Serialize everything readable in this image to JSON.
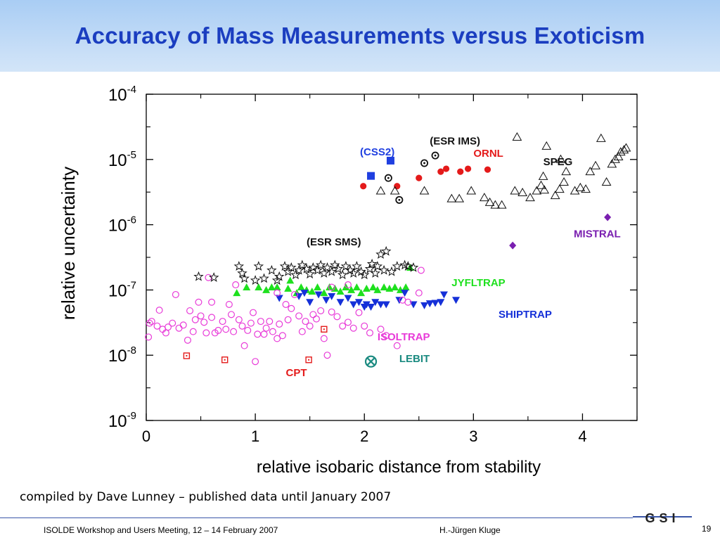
{
  "slide": {
    "title": "Accuracy of Mass Measurements versus Exoticism",
    "credit": "compiled by Dave Lunney – published data until January 2007",
    "footer_left": "ISOLDE Workshop and Users Meeting, 12 – 14  February 2007",
    "footer_mid": "H.-Jürgen Kluge",
    "page_number": "19",
    "logo_text": "GSI"
  },
  "chart_data": {
    "type": "scatter",
    "xlabel": "relative isobaric distance from stability",
    "ylabel": "relative uncertainty",
    "xlim": [
      0,
      4.5
    ],
    "ylim": [
      1e-09,
      0.0001
    ],
    "y_scale": "log",
    "x_ticks": [
      "0",
      "1",
      "2",
      "3",
      "4"
    ],
    "y_tick_exponents": [
      "-9",
      "-8",
      "-7",
      "-6",
      "-5",
      "-4"
    ],
    "y_tick_base": "10",
    "grid": false,
    "colors": {
      "ornl": "#e41a1a",
      "speg": "#111111",
      "css2": "#1f3fe0",
      "esr_ims": "#111111",
      "mistral": "#7a1fb0",
      "jyfltrap": "#1ee01e",
      "shiptrap": "#1530d8",
      "isoltrap": "#e83ad8",
      "cpt": "#e41a1a",
      "lebit": "#1a8a80",
      "esr_sms": "#111111"
    },
    "series": [
      {
        "name": "ORNL",
        "key": "ornl",
        "marker": "circle-filled",
        "points": [
          [
            1.99,
            3.9e-06
          ],
          [
            2.3,
            3.9e-06
          ],
          [
            2.5,
            5.2e-06
          ],
          [
            2.7,
            6.5e-06
          ],
          [
            2.75,
            7.2e-06
          ],
          [
            2.88,
            6.5e-06
          ],
          [
            2.95,
            7.2e-06
          ],
          [
            3.13,
            7e-06
          ]
        ]
      },
      {
        "name": "SPEG",
        "key": "speg",
        "marker": "triangle-open",
        "points": [
          [
            2.15,
            3.3e-06
          ],
          [
            2.28,
            3.3e-06
          ],
          [
            2.55,
            3.3e-06
          ],
          [
            2.8,
            2.5e-06
          ],
          [
            2.87,
            2.5e-06
          ],
          [
            2.98,
            3.3e-06
          ],
          [
            3.1,
            2.6e-06
          ],
          [
            3.15,
            2.2e-06
          ],
          [
            3.2,
            2e-06
          ],
          [
            3.26,
            2e-06
          ],
          [
            3.38,
            3.3e-06
          ],
          [
            3.45,
            3.1e-06
          ],
          [
            3.52,
            2.6e-06
          ],
          [
            3.58,
            3.3e-06
          ],
          [
            3.62,
            4e-06
          ],
          [
            3.65,
            3.4e-06
          ],
          [
            3.75,
            2.8e-06
          ],
          [
            3.79,
            3.5e-06
          ],
          [
            3.83,
            4.5e-06
          ],
          [
            3.85,
            6.5e-06
          ],
          [
            3.93,
            3.3e-06
          ],
          [
            3.98,
            3.7e-06
          ],
          [
            4.03,
            3.5e-06
          ],
          [
            4.07,
            6.5e-06
          ],
          [
            4.12,
            8e-06
          ],
          [
            4.22,
            4.5e-06
          ],
          [
            4.27,
            8.5e-06
          ],
          [
            4.3,
            1e-05
          ],
          [
            4.33,
            1.1e-05
          ],
          [
            4.35,
            1.3e-05
          ],
          [
            4.38,
            1.4e-05
          ],
          [
            4.4,
            1.5e-05
          ],
          [
            3.64,
            5.5e-06
          ],
          [
            3.8,
            1e-05
          ],
          [
            4.17,
            2.1e-05
          ],
          [
            3.67,
            1.6e-05
          ],
          [
            3.4,
            2.2e-05
          ]
        ]
      },
      {
        "name": "(CSS2)",
        "key": "css2",
        "marker": "square-filled",
        "points": [
          [
            2.06,
            5.6e-06
          ],
          [
            2.24,
            9.6e-06
          ]
        ]
      },
      {
        "name": "(ESR IMS)",
        "key": "esr_ims",
        "marker": "circle-dot",
        "points": [
          [
            2.22,
            5.2e-06
          ],
          [
            2.32,
            2.4e-06
          ],
          [
            2.55,
            8.8e-06
          ],
          [
            2.65,
            1.15e-05
          ]
        ]
      },
      {
        "name": "MISTRAL",
        "key": "mistral",
        "marker": "diamond-filled",
        "points": [
          [
            3.36,
            4.8e-07
          ],
          [
            4.23,
            1.3e-06
          ]
        ]
      },
      {
        "name": "JYFLTRAP",
        "key": "jyfltrap",
        "marker": "triangle-filled",
        "points": [
          [
            0.83,
            9e-08
          ],
          [
            0.92,
            1.1e-07
          ],
          [
            1.03,
            1.1e-07
          ],
          [
            1.1,
            1e-07
          ],
          [
            1.15,
            1.1e-07
          ],
          [
            1.2,
            1.1e-07
          ],
          [
            1.3,
            1.05e-07
          ],
          [
            1.32,
            1.4e-07
          ],
          [
            1.38,
            9e-08
          ],
          [
            1.42,
            1.1e-07
          ],
          [
            1.47,
            1e-07
          ],
          [
            1.52,
            9.5e-08
          ],
          [
            1.57,
            1.1e-07
          ],
          [
            1.63,
            9e-08
          ],
          [
            1.68,
            1.1e-07
          ],
          [
            1.73,
            1.05e-07
          ],
          [
            1.78,
            9.5e-08
          ],
          [
            1.83,
            1.1e-07
          ],
          [
            1.88,
            1e-07
          ],
          [
            1.93,
            1.1e-07
          ],
          [
            1.97,
            9e-08
          ],
          [
            2.02,
            1.05e-07
          ],
          [
            2.08,
            1.1e-07
          ],
          [
            2.12,
            1e-07
          ],
          [
            2.18,
            1.1e-07
          ],
          [
            2.23,
            1.05e-07
          ],
          [
            2.28,
            1.1e-07
          ],
          [
            2.33,
            1e-07
          ],
          [
            2.38,
            1.1e-07
          ],
          [
            2.42,
            2.2e-07
          ]
        ]
      },
      {
        "name": "SHIPTRAP",
        "key": "shiptrap",
        "marker": "triangle-down-filled",
        "points": [
          [
            1.22,
            7.5e-08
          ],
          [
            1.4,
            8e-08
          ],
          [
            1.45,
            9e-08
          ],
          [
            1.5,
            6.5e-08
          ],
          [
            1.58,
            8.5e-08
          ],
          [
            1.65,
            7e-08
          ],
          [
            1.7,
            8e-08
          ],
          [
            1.78,
            6.5e-08
          ],
          [
            1.85,
            7.5e-08
          ],
          [
            1.9,
            6e-08
          ],
          [
            1.95,
            6.5e-08
          ],
          [
            2.0,
            5.5e-08
          ],
          [
            2.02,
            6e-08
          ],
          [
            2.06,
            5.5e-08
          ],
          [
            2.1,
            6.5e-08
          ],
          [
            2.15,
            6e-08
          ],
          [
            2.2,
            6e-08
          ],
          [
            2.32,
            7e-08
          ],
          [
            2.37,
            9e-08
          ],
          [
            2.45,
            6e-08
          ],
          [
            2.55,
            5.8e-08
          ],
          [
            2.6,
            6.2e-08
          ],
          [
            2.65,
            6.3e-08
          ],
          [
            2.7,
            6.5e-08
          ],
          [
            2.73,
            8.5e-08
          ],
          [
            2.84,
            7e-08
          ]
        ]
      },
      {
        "name": "ISOLTRAP",
        "key": "isoltrap",
        "marker": "circle-open",
        "points": [
          [
            0.02,
            1.9e-08
          ],
          [
            0.03,
            3.1e-08
          ],
          [
            0.05,
            3.3e-08
          ],
          [
            0.1,
            2.8e-08
          ],
          [
            0.12,
            4.9e-08
          ],
          [
            0.15,
            2.5e-08
          ],
          [
            0.18,
            2.2e-08
          ],
          [
            0.2,
            2.7e-08
          ],
          [
            0.24,
            3.1e-08
          ],
          [
            0.27,
            8.5e-08
          ],
          [
            0.3,
            2.6e-08
          ],
          [
            0.34,
            2.9e-08
          ],
          [
            0.38,
            1.7e-08
          ],
          [
            0.4,
            4.8e-08
          ],
          [
            0.43,
            2.3e-08
          ],
          [
            0.45,
            3.5e-08
          ],
          [
            0.48,
            6.5e-08
          ],
          [
            0.5,
            4e-08
          ],
          [
            0.53,
            3.2e-08
          ],
          [
            0.55,
            2.2e-08
          ],
          [
            0.57,
            1.55e-07
          ],
          [
            0.6,
            3.8e-08
          ],
          [
            0.63,
            2.2e-08
          ],
          [
            0.66,
            2.4e-08
          ],
          [
            0.7,
            3.3e-08
          ],
          [
            0.73,
            2.5e-08
          ],
          [
            0.76,
            6e-08
          ],
          [
            0.78,
            4.2e-08
          ],
          [
            0.8,
            2.3e-08
          ],
          [
            0.82,
            1.2e-07
          ],
          [
            0.85,
            3.5e-08
          ],
          [
            0.88,
            2.8e-08
          ],
          [
            0.9,
            1.4e-08
          ],
          [
            0.93,
            2.4e-08
          ],
          [
            0.96,
            3.1e-08
          ],
          [
            0.98,
            4.5e-08
          ],
          [
            1.0,
            8e-09
          ],
          [
            1.02,
            2.1e-08
          ],
          [
            1.05,
            3.3e-08
          ],
          [
            1.08,
            2.1e-08
          ],
          [
            1.1,
            2.6e-08
          ],
          [
            1.13,
            3.3e-08
          ],
          [
            1.16,
            2.3e-08
          ],
          [
            1.2,
            1.8e-08
          ],
          [
            1.22,
            3e-08
          ],
          [
            1.25,
            2e-08
          ],
          [
            1.28,
            6e-08
          ],
          [
            1.3,
            3.5e-08
          ],
          [
            1.33,
            5.2e-08
          ],
          [
            1.36,
            8.5e-08
          ],
          [
            1.4,
            4e-08
          ],
          [
            1.43,
            2.3e-08
          ],
          [
            1.46,
            3.3e-08
          ],
          [
            1.5,
            2.8e-08
          ],
          [
            1.53,
            4.2e-08
          ],
          [
            1.56,
            3.6e-08
          ],
          [
            1.6,
            4.8e-08
          ],
          [
            1.63,
            1.8e-08
          ],
          [
            1.66,
            1e-08
          ],
          [
            1.7,
            4.6e-08
          ],
          [
            1.75,
            3.9e-08
          ],
          [
            1.8,
            2.8e-08
          ],
          [
            1.85,
            3.2e-08
          ],
          [
            1.9,
            2.6e-08
          ],
          [
            1.95,
            4.5e-08
          ],
          [
            2.0,
            2.8e-08
          ],
          [
            2.05,
            2.2e-08
          ],
          [
            2.15,
            2.5e-08
          ],
          [
            2.2,
            2e-08
          ],
          [
            2.3,
            1.4e-08
          ],
          [
            2.35,
            7e-08
          ],
          [
            2.4,
            6.5e-08
          ],
          [
            2.5,
            9e-08
          ],
          [
            2.52,
            2e-07
          ],
          [
            1.7,
            1.1e-07
          ],
          [
            1.85,
            1.2e-07
          ],
          [
            1.2,
            9e-08
          ],
          [
            0.6,
            6.5e-08
          ]
        ]
      },
      {
        "name": "CPT",
        "key": "cpt",
        "marker": "square-dot",
        "points": [
          [
            0.37,
            9.8e-09
          ],
          [
            0.72,
            8.5e-09
          ],
          [
            1.49,
            8.5e-09
          ],
          [
            1.63,
            2.5e-08
          ]
        ]
      },
      {
        "name": "LEBIT",
        "key": "lebit",
        "marker": "circle-x",
        "points": [
          [
            2.06,
            8e-09
          ]
        ]
      },
      {
        "name": "(ESR SMS)",
        "key": "esr_sms",
        "marker": "star-open",
        "points": [
          [
            0.48,
            1.6e-07
          ],
          [
            0.62,
            1.55e-07
          ],
          [
            0.85,
            2.3e-07
          ],
          [
            0.88,
            1.8e-07
          ],
          [
            0.9,
            1.5e-07
          ],
          [
            1.0,
            1.4e-07
          ],
          [
            1.03,
            2.3e-07
          ],
          [
            1.08,
            1.5e-07
          ],
          [
            1.15,
            2e-07
          ],
          [
            1.2,
            1.4e-07
          ],
          [
            1.22,
            1.6e-07
          ],
          [
            1.27,
            2.3e-07
          ],
          [
            1.3,
            1.9e-07
          ],
          [
            1.33,
            2.2e-07
          ],
          [
            1.37,
            1.7e-07
          ],
          [
            1.4,
            2e-07
          ],
          [
            1.43,
            2.4e-07
          ],
          [
            1.47,
            2.1e-07
          ],
          [
            1.5,
            1.75e-07
          ],
          [
            1.53,
            2.2e-07
          ],
          [
            1.57,
            2e-07
          ],
          [
            1.6,
            2.4e-07
          ],
          [
            1.63,
            1.8e-07
          ],
          [
            1.66,
            2.2e-07
          ],
          [
            1.7,
            1.9e-07
          ],
          [
            1.73,
            2.4e-07
          ],
          [
            1.76,
            2.1e-07
          ],
          [
            1.8,
            1.7e-07
          ],
          [
            1.83,
            2.3e-07
          ],
          [
            1.87,
            2e-07
          ],
          [
            1.9,
            1.8e-07
          ],
          [
            1.93,
            2.3e-07
          ],
          [
            1.97,
            1.9e-07
          ],
          [
            2.0,
            1.7e-07
          ],
          [
            2.05,
            2.1e-07
          ],
          [
            2.07,
            2.5e-07
          ],
          [
            2.1,
            1.8e-07
          ],
          [
            2.12,
            2.3e-07
          ],
          [
            2.15,
            3.5e-07
          ],
          [
            2.18,
            2e-07
          ],
          [
            2.2,
            3.9e-07
          ],
          [
            2.25,
            1.9e-07
          ],
          [
            2.3,
            2.3e-07
          ],
          [
            2.37,
            2.4e-07
          ],
          [
            2.4,
            2.3e-07
          ],
          [
            2.45,
            2.2e-07
          ]
        ]
      }
    ],
    "annotations": [
      {
        "text": "(ESR IMS)",
        "key": "esr_ims",
        "x": 2.6,
        "y": 1.7e-05
      },
      {
        "text": "(CSS2)",
        "key": "css2",
        "x": 1.96,
        "y": 1.15e-05
      },
      {
        "text": "ORNL",
        "key": "ornl",
        "x": 3.0,
        "y": 1.1e-05
      },
      {
        "text": "SPEG",
        "key": "speg",
        "x": 3.64,
        "y": 8.2e-06
      },
      {
        "text": "MISTRAL",
        "key": "mistral",
        "x": 3.92,
        "y": 6.4e-07
      },
      {
        "text": "(ESR SMS)",
        "key": "esr_sms",
        "x": 1.47,
        "y": 4.8e-07
      },
      {
        "text": "JYFLTRAP",
        "key": "jyfltrap",
        "x": 2.8,
        "y": 1.14e-07
      },
      {
        "text": "SHIPTRAP",
        "key": "shiptrap",
        "x": 3.23,
        "y": 3.75e-08
      },
      {
        "text": "ISOLTRAP",
        "key": "isoltrap",
        "x": 2.12,
        "y": 1.7e-08
      },
      {
        "text": "CPT",
        "key": "cpt",
        "x": 1.28,
        "y": 4.8e-09
      },
      {
        "text": "LEBIT",
        "key": "lebit",
        "x": 2.32,
        "y": 7.8e-09
      }
    ]
  }
}
